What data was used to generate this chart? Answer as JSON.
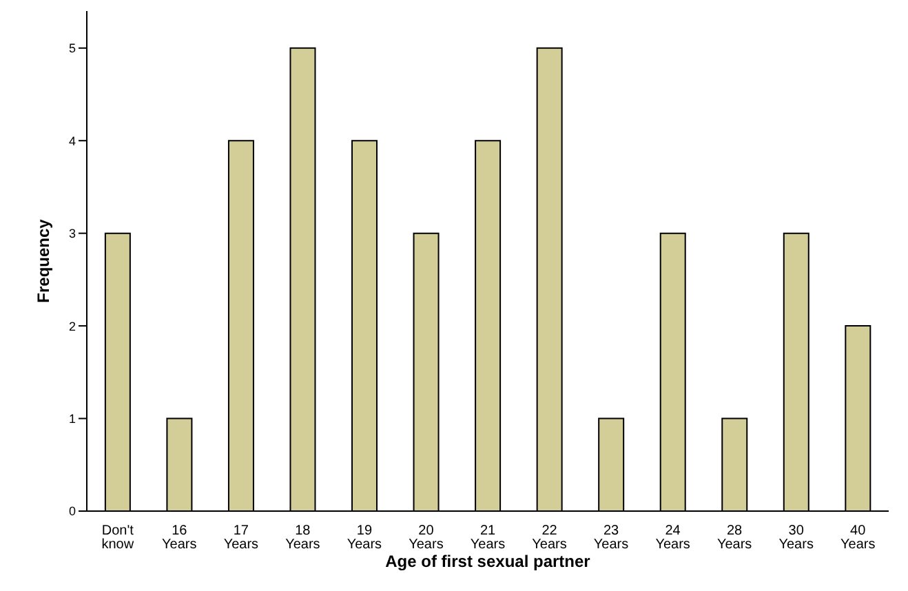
{
  "chart_data": {
    "type": "bar",
    "xlabel": "Age of first sexual partner",
    "ylabel": "Frequency",
    "categories": [
      "Don't know",
      "16 Years",
      "17 Years",
      "18 Years",
      "19 Years",
      "20 Years",
      "21 Years",
      "22 Years",
      "23 Years",
      "24 Years",
      "28 Years",
      "30 Years",
      "40 Years"
    ],
    "values": [
      3,
      1,
      4,
      5,
      4,
      3,
      4,
      5,
      1,
      3,
      1,
      3,
      2
    ],
    "color": "#d3ce97",
    "ylim": [
      0,
      5.4
    ],
    "yticks": [
      0,
      1,
      2,
      3,
      4,
      5
    ],
    "grid": false
  }
}
